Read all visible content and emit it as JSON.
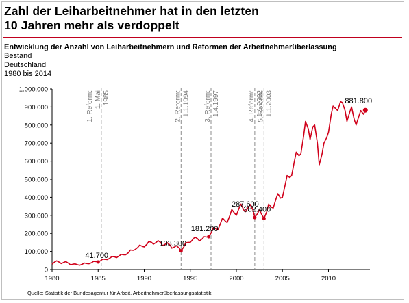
{
  "title_line1": "Zahl der Leiharbeitnehmer hat in den letzten",
  "title_line2": "10 Jahren mehr als verdoppelt",
  "subtitle": "Entwicklung der Anzahl von Leiharbeitnehmern und Reformen der Arbeitnehmerüberlassung",
  "meta_line1": "Bestand",
  "meta_line2": "Deutschland",
  "meta_line3": "1980 bis 2014",
  "source": "Quelle: Statistik der Bundesagentur für Arbeit, Arbeitnehmerüberlassungsstatistik",
  "colors": {
    "line": "#d0001a",
    "rule": "#c0001e",
    "reform": "#8c8c8c"
  },
  "chart_data": {
    "type": "line",
    "title": "Zahl der Leiharbeitnehmer hat in den letzten 10 Jahren mehr als verdoppelt",
    "subtitle": "Entwicklung der Anzahl von Leiharbeitnehmern und Reformen der Arbeitnehmerüberlassung",
    "xlim": [
      1980,
      2014.5
    ],
    "ylim": [
      0,
      1000000
    ],
    "x_ticks": [
      1980,
      1985,
      1990,
      1995,
      2000,
      2005,
      2010
    ],
    "y_ticks": [
      {
        "value": 0,
        "label": "0"
      },
      {
        "value": 100000,
        "label": "100.000"
      },
      {
        "value": 200000,
        "label": "200.000"
      },
      {
        "value": 300000,
        "label": "300.000"
      },
      {
        "value": 400000,
        "label": "400.000"
      },
      {
        "value": 500000,
        "label": "500.000"
      },
      {
        "value": 600000,
        "label": "600.000"
      },
      {
        "value": 700000,
        "label": "700.000"
      },
      {
        "value": 800000,
        "label": "800.000"
      },
      {
        "value": 900000,
        "label": "900.000"
      },
      {
        "value": 1000000,
        "label": "1.000.000"
      }
    ],
    "series": [
      {
        "x": [
          1980.0,
          1980.3,
          1980.5,
          1980.8,
          1981.0,
          1981.3,
          1981.5,
          1981.8,
          1982.0,
          1982.3,
          1982.5,
          1982.8,
          1983.0,
          1983.3,
          1983.5,
          1983.8,
          1984.0,
          1984.3,
          1984.5,
          1984.8,
          1985.0,
          1985.3,
          1985.5,
          1985.8,
          1986.0,
          1986.3,
          1986.5,
          1986.8,
          1987.0,
          1987.3,
          1987.5,
          1987.8,
          1988.0,
          1988.3,
          1988.5,
          1988.8,
          1989.0,
          1989.3,
          1989.5,
          1989.8,
          1990.0,
          1990.3,
          1990.5,
          1990.8,
          1991.0,
          1991.3,
          1991.5,
          1991.8,
          1992.0,
          1992.3,
          1992.5,
          1992.8,
          1993.0,
          1993.3,
          1993.5,
          1993.8,
          1994.0,
          1994.3,
          1994.5,
          1994.8,
          1995.0,
          1995.3,
          1995.5,
          1995.8,
          1996.0,
          1996.3,
          1996.5,
          1996.8,
          1997.0,
          1997.3,
          1997.5,
          1997.8,
          1998.0,
          1998.3,
          1998.5,
          1998.8,
          1999.0,
          1999.3,
          1999.5,
          1999.8,
          2000.0,
          2000.3,
          2000.5,
          2000.8,
          2001.0,
          2001.3,
          2001.5,
          2001.8,
          2002.0,
          2002.3,
          2002.5,
          2002.8,
          2003.0,
          2003.3,
          2003.5,
          2003.8,
          2004.0,
          2004.3,
          2004.5,
          2004.8,
          2005.0,
          2005.3,
          2005.5,
          2005.8,
          2006.0,
          2006.3,
          2006.5,
          2006.8,
          2007.0,
          2007.3,
          2007.5,
          2007.8,
          2008.0,
          2008.3,
          2008.5,
          2008.8,
          2009.0,
          2009.3,
          2009.5,
          2009.8,
          2010.0,
          2010.3,
          2010.5,
          2010.8,
          2011.0,
          2011.3,
          2011.5,
          2011.8,
          2012.0,
          2012.3,
          2012.5,
          2012.8,
          2013.0,
          2013.3,
          2013.5,
          2013.8,
          2014.0
        ],
        "values": [
          30000,
          42000,
          48000,
          40000,
          33000,
          40000,
          44000,
          34000,
          26000,
          30000,
          31000,
          26000,
          24000,
          30000,
          36000,
          33000,
          32000,
          38000,
          45000,
          44000,
          41700,
          50000,
          58000,
          56000,
          55000,
          64000,
          72000,
          70000,
          66000,
          76000,
          84000,
          82000,
          82000,
          94000,
          108000,
          106000,
          110000,
          122000,
          135000,
          128000,
          125000,
          140000,
          155000,
          150000,
          140000,
          150000,
          160000,
          148000,
          132000,
          140000,
          148000,
          135000,
          118000,
          125000,
          132000,
          118000,
          103300,
          125000,
          148000,
          150000,
          150000,
          168000,
          180000,
          170000,
          158000,
          170000,
          182000,
          180000,
          181200,
          206000,
          232000,
          225000,
          220000,
          258000,
          285000,
          268000,
          260000,
          300000,
          332000,
          312000,
          300000,
          340000,
          362000,
          330000,
          320000,
          345000,
          360000,
          330000,
          287600,
          310000,
          330000,
          300000,
          282400,
          320000,
          362000,
          345000,
          340000,
          390000,
          420000,
          395000,
          400000,
          470000,
          520000,
          510000,
          520000,
          600000,
          650000,
          630000,
          640000,
          740000,
          820000,
          780000,
          720000,
          790000,
          800000,
          700000,
          580000,
          640000,
          700000,
          730000,
          760000,
          860000,
          905000,
          890000,
          880000,
          930000,
          925000,
          880000,
          820000,
          870000,
          900000,
          830000,
          800000,
          850000,
          880000,
          860000,
          881800
        ]
      }
    ],
    "data_labels": [
      {
        "x": 1985.0,
        "value": 41700,
        "label": "41.700"
      },
      {
        "x": 1994.0,
        "value": 103300,
        "label": "103.300"
      },
      {
        "x": 1997.0,
        "value": 181200,
        "label": "181.200"
      },
      {
        "x": 2002.0,
        "value": 287600,
        "label": "287.600"
      },
      {
        "x": 2003.0,
        "value": 282400,
        "label": "282.400"
      },
      {
        "x": 2014.0,
        "value": 881800,
        "label": "881.800"
      }
    ],
    "reforms": [
      {
        "x": 1985.34,
        "line1": "1. Reform:",
        "line2": "1. Mai",
        "line3": "1985"
      },
      {
        "x": 1994.0,
        "line1": "2. Reform:",
        "line2": "1.1.1994",
        "line3": ""
      },
      {
        "x": 1997.25,
        "line1": "3. Reform:",
        "line2": "1.4.1997",
        "line3": ""
      },
      {
        "x": 2002.0,
        "line1": "4. Reform:",
        "line2": "1.1.2002",
        "line3": ""
      },
      {
        "x": 2003.0,
        "line1": "5. Reform:",
        "line2": "1.1.2003",
        "line3": ""
      }
    ]
  }
}
